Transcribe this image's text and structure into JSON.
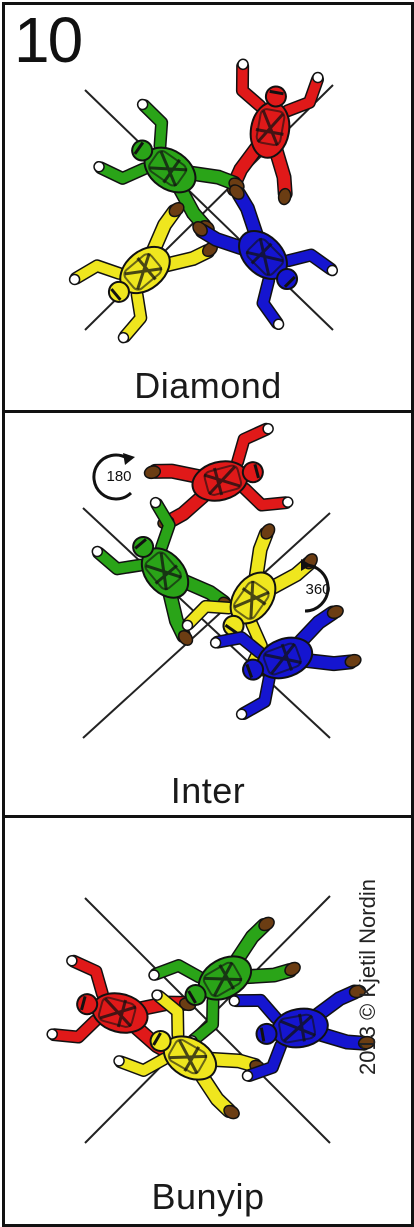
{
  "card": {
    "number": "10",
    "copyright": "2013 © Kjetil Nordin"
  },
  "panels": [
    {
      "name": "diamond",
      "title": "Diamond"
    },
    {
      "name": "inter",
      "title": "Inter",
      "rotations": [
        "180",
        "360"
      ]
    },
    {
      "name": "bunyip",
      "title": "Bunyip"
    }
  ],
  "colors": {
    "red": "#e01919",
    "green": "#2aa418",
    "blue": "#1515d0",
    "yellow": "#efe61e",
    "shoe": "#6b3d13",
    "outline": "#111111"
  }
}
